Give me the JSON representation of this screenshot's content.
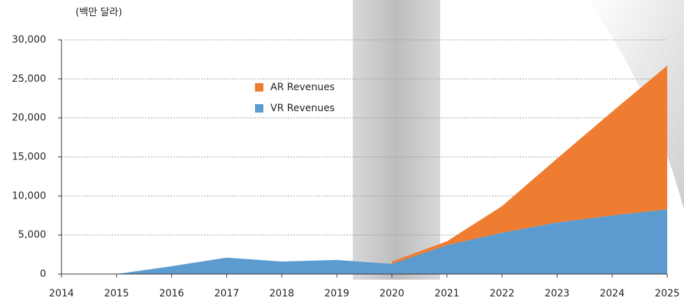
{
  "chart_data": {
    "type": "area",
    "stacked": true,
    "y_unit_label": "(백만 달라)",
    "x": [
      2014,
      2015,
      2016,
      2017,
      2018,
      2019,
      2020,
      2021,
      2022,
      2023,
      2024,
      2025
    ],
    "series": [
      {
        "name": "VR Revenues",
        "color": "#5b9bd0",
        "values": [
          null,
          0,
          1000,
          2100,
          1600,
          1800,
          1300,
          3700,
          5300,
          6600,
          7500,
          8300
        ]
      },
      {
        "name": "AR Revenues",
        "color": "#ef7d31",
        "values": [
          null,
          null,
          null,
          null,
          null,
          null,
          300,
          500,
          3400,
          8200,
          13300,
          18400
        ]
      }
    ],
    "xlim": [
      2014,
      2025
    ],
    "xticks": [
      2014,
      2015,
      2016,
      2017,
      2018,
      2019,
      2020,
      2021,
      2022,
      2023,
      2024,
      2025
    ],
    "ylim": [
      0,
      30000
    ],
    "yticks": [
      0,
      {
        "value": 5000,
        "label": "5,000"
      },
      {
        "value": 10000,
        "label": "10,000"
      },
      {
        "value": 15000,
        "label": "15,000"
      },
      {
        "value": 20000,
        "label": "20,000"
      },
      {
        "value": 25000,
        "label": "25,000"
      },
      {
        "value": 30000,
        "label": "30,000"
      }
    ],
    "grid": true
  }
}
